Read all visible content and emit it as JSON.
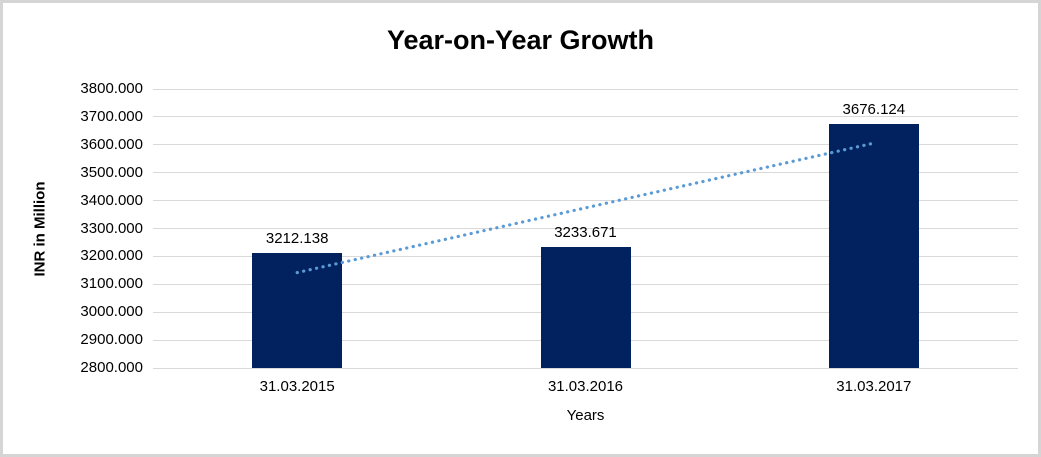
{
  "window": {
    "background": "#ffffff",
    "border_color": "#d5d5d5"
  },
  "chart_data": {
    "type": "bar",
    "title": "Year-on-Year Growth",
    "xlabel": "Years",
    "ylabel": "INR in Million",
    "categories": [
      "31.03.2015",
      "31.03.2016",
      "31.03.2017"
    ],
    "values": [
      3212.138,
      3233.671,
      3676.124
    ],
    "value_labels": [
      "3212.138",
      "3233.671",
      "3676.124"
    ],
    "ylim": [
      2800,
      3800
    ],
    "ytick_step": 100,
    "ytick_labels": [
      "3800.000",
      "3700.000",
      "3600.000",
      "3500.000",
      "3400.000",
      "3300.000",
      "3200.000",
      "3100.000",
      "3000.000",
      "2900.000",
      "2800.000"
    ],
    "grid": true,
    "legend": "none",
    "gridline_color": "#d9d9d9",
    "bar_color": "#02225F",
    "text_color": "#000000",
    "trendline": {
      "type": "linear",
      "style": "dotted",
      "color": "#5B9BD5"
    }
  }
}
